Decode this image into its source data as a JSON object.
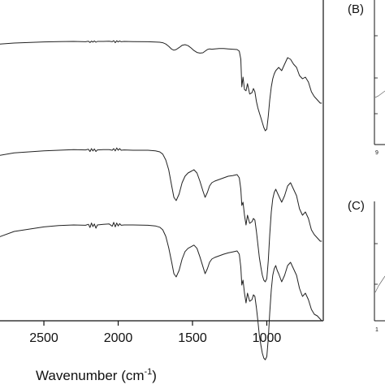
{
  "chart_data": [
    {
      "panel": "A",
      "type": "line",
      "xlabel": "Wavenumber (cm",
      "xlabel_sup": "-1",
      "xlabel_close": ")",
      "ylabel": "",
      "xlim": [
        2850,
        620
      ],
      "x_reversed": true,
      "xticks": [
        2500,
        2000,
        1500,
        1000
      ],
      "grid": false,
      "legend": "none",
      "series": [
        {
          "offset": 0,
          "x": [
            2850,
            2700,
            2500,
            2400,
            2300,
            2220,
            2200,
            2190,
            2180,
            2170,
            2160,
            2150,
            2140,
            2100,
            2060,
            2040,
            2030,
            2020,
            2010,
            2000,
            1990,
            1980,
            1960,
            1900,
            1800,
            1750,
            1720,
            1700,
            1680,
            1660,
            1640,
            1625,
            1610,
            1590,
            1570,
            1550,
            1530,
            1510,
            1490,
            1470,
            1450,
            1430,
            1415,
            1400,
            1385,
            1370,
            1350,
            1320,
            1290,
            1260,
            1230,
            1200,
            1185,
            1175,
            1168,
            1160,
            1150,
            1140,
            1130,
            1115,
            1100,
            1090,
            1080,
            1070,
            1060,
            1050,
            1040,
            1030,
            1020,
            1010,
            1000,
            990,
            980,
            970,
            960,
            950,
            940,
            930,
            920,
            900,
            880,
            860,
            840,
            820,
            800,
            780,
            760,
            740,
            720,
            700,
            680,
            660,
            640,
            630
          ],
          "y": [
            0.5,
            0.55,
            0.585,
            0.595,
            0.6,
            0.59,
            0.605,
            0.565,
            0.61,
            0.58,
            0.615,
            0.575,
            0.6,
            0.6,
            0.605,
            0.59,
            0.625,
            0.56,
            0.62,
            0.585,
            0.615,
            0.59,
            0.6,
            0.595,
            0.59,
            0.58,
            0.575,
            0.56,
            0.52,
            0.45,
            0.36,
            0.33,
            0.35,
            0.41,
            0.48,
            0.5,
            0.47,
            0.4,
            0.32,
            0.26,
            0.24,
            0.25,
            0.3,
            0.35,
            0.37,
            0.36,
            0.37,
            0.38,
            0.38,
            0.37,
            0.36,
            0.35,
            0.3,
            0.05,
            -0.8,
            -0.5,
            -0.88,
            -0.92,
            -0.7,
            -1.02,
            -0.98,
            -0.85,
            -0.95,
            -1.25,
            -1.45,
            -1.6,
            -1.75,
            -1.9,
            -2.05,
            -2.15,
            -2.1,
            -1.7,
            -1.2,
            -0.8,
            -0.55,
            -0.4,
            -0.3,
            -0.25,
            -0.2,
            -0.3,
            -0.1,
            0.1,
            0.05,
            -0.1,
            -0.2,
            -0.45,
            -0.55,
            -0.5,
            -0.65,
            -0.95,
            -1.1,
            -1.2,
            -1.3,
            -1.3
          ]
        },
        {
          "offset": -1,
          "x": [
            2850,
            2700,
            2500,
            2400,
            2300,
            2220,
            2200,
            2190,
            2180,
            2170,
            2160,
            2150,
            2140,
            2100,
            2060,
            2040,
            2030,
            2020,
            2010,
            2000,
            1990,
            1980,
            1960,
            1900,
            1800,
            1750,
            1720,
            1700,
            1680,
            1660,
            1640,
            1625,
            1610,
            1590,
            1570,
            1550,
            1530,
            1510,
            1490,
            1470,
            1450,
            1430,
            1415,
            1400,
            1385,
            1370,
            1350,
            1320,
            1290,
            1260,
            1230,
            1200,
            1185,
            1175,
            1168,
            1160,
            1150,
            1140,
            1130,
            1115,
            1100,
            1090,
            1080,
            1070,
            1060,
            1050,
            1040,
            1030,
            1020,
            1010,
            1000,
            990,
            980,
            970,
            960,
            950,
            940,
            930,
            920,
            900,
            880,
            860,
            840,
            820,
            800,
            780,
            760,
            740,
            720,
            700,
            680,
            660,
            640,
            630
          ],
          "y": [
            0.3,
            0.42,
            0.48,
            0.5,
            0.52,
            0.51,
            0.53,
            0.46,
            0.55,
            0.48,
            0.54,
            0.46,
            0.51,
            0.52,
            0.52,
            0.5,
            0.55,
            0.48,
            0.57,
            0.5,
            0.55,
            0.5,
            0.51,
            0.5,
            0.5,
            0.48,
            0.45,
            0.38,
            0.2,
            -0.1,
            -0.6,
            -0.95,
            -1.05,
            -0.85,
            -0.5,
            -0.3,
            -0.2,
            -0.15,
            -0.1,
            -0.2,
            -0.45,
            -0.75,
            -0.95,
            -0.8,
            -0.6,
            -0.5,
            -0.45,
            -0.4,
            -0.35,
            -0.3,
            -0.28,
            -0.25,
            -0.35,
            -0.7,
            -1.2,
            -1.1,
            -1.5,
            -1.8,
            -1.5,
            -1.75,
            -1.7,
            -1.6,
            -1.65,
            -2.0,
            -2.4,
            -2.8,
            -3.1,
            -3.35,
            -3.5,
            -3.55,
            -3.45,
            -2.9,
            -2.1,
            -1.4,
            -1.0,
            -0.8,
            -0.7,
            -0.8,
            -0.9,
            -1.1,
            -0.9,
            -0.6,
            -0.5,
            -0.7,
            -0.9,
            -1.3,
            -1.5,
            -1.4,
            -1.6,
            -1.95,
            -2.1,
            -2.2,
            -2.3,
            -2.3
          ]
        },
        {
          "offset": -2,
          "x": [
            2850,
            2700,
            2500,
            2400,
            2300,
            2220,
            2200,
            2190,
            2180,
            2170,
            2160,
            2150,
            2140,
            2100,
            2060,
            2040,
            2030,
            2020,
            2010,
            2000,
            1990,
            1980,
            1960,
            1900,
            1800,
            1750,
            1720,
            1700,
            1680,
            1660,
            1640,
            1625,
            1610,
            1590,
            1570,
            1550,
            1530,
            1510,
            1490,
            1470,
            1450,
            1430,
            1415,
            1400,
            1385,
            1370,
            1350,
            1320,
            1290,
            1260,
            1230,
            1200,
            1185,
            1175,
            1168,
            1160,
            1150,
            1140,
            1130,
            1115,
            1100,
            1090,
            1080,
            1070,
            1060,
            1050,
            1040,
            1030,
            1020,
            1010,
            1000,
            990,
            980,
            970,
            960,
            950,
            940,
            930,
            920,
            900,
            880,
            860,
            840,
            820,
            800,
            780,
            760,
            740,
            720,
            700,
            680,
            660,
            640,
            630
          ],
          "y": [
            0.05,
            0.3,
            0.44,
            0.48,
            0.5,
            0.49,
            0.52,
            0.42,
            0.56,
            0.45,
            0.53,
            0.4,
            0.5,
            0.52,
            0.53,
            0.46,
            0.58,
            0.44,
            0.56,
            0.47,
            0.54,
            0.49,
            0.5,
            0.5,
            0.49,
            0.47,
            0.43,
            0.35,
            0.15,
            -0.2,
            -0.65,
            -1.0,
            -1.1,
            -0.9,
            -0.55,
            -0.32,
            -0.22,
            -0.17,
            -0.12,
            -0.22,
            -0.48,
            -0.78,
            -1.0,
            -0.85,
            -0.65,
            -0.55,
            -0.5,
            -0.45,
            -0.4,
            -0.36,
            -0.33,
            -0.3,
            -0.4,
            -0.8,
            -1.35,
            -1.2,
            -1.6,
            -1.9,
            -1.6,
            -1.85,
            -1.8,
            -1.65,
            -1.7,
            -2.05,
            -2.45,
            -2.9,
            -3.2,
            -3.45,
            -3.6,
            -3.65,
            -3.55,
            -3.0,
            -2.2,
            -1.5,
            -1.05,
            -0.85,
            -0.75,
            -0.9,
            -1.0,
            -1.25,
            -1.05,
            -0.75,
            -0.65,
            -0.85,
            -1.05,
            -1.45,
            -1.7,
            -1.6,
            -1.8,
            -2.1,
            -2.25,
            -2.3,
            -2.4,
            -2.45
          ]
        }
      ]
    },
    {
      "panel": "B",
      "label": "(B)",
      "type": "line",
      "tick_label_fragment": "9"
    },
    {
      "panel": "C",
      "label": "(C)",
      "type": "line",
      "tick_label_fragment": "1"
    }
  ]
}
